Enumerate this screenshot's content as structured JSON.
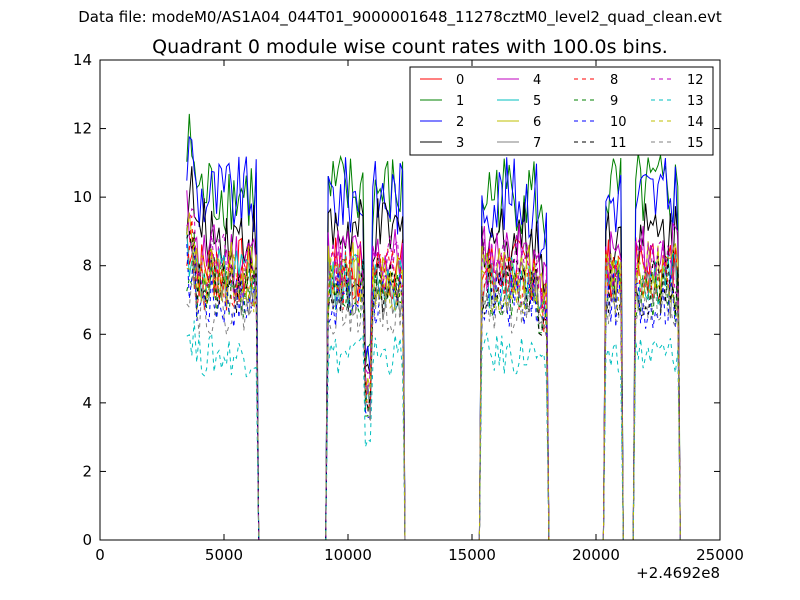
{
  "figure": {
    "suptitle": "Data file: modeM0/AS1A04_044T01_9000001648_11278cztM0_level2_quad_clean.evt",
    "offset_label": "+2.4692e8"
  },
  "chart_data": {
    "type": "line",
    "title": "Quadrant 0 module wise count rates with 100.0s bins.",
    "xlabel": "",
    "ylabel": "",
    "xlim": [
      0,
      25000
    ],
    "ylim": [
      0,
      14
    ],
    "x_offset": 246920000,
    "grid": false,
    "legend_placement": "top-right",
    "xticks": [
      0,
      5000,
      10000,
      15000,
      20000,
      25000
    ],
    "yticks": [
      0,
      2,
      4,
      6,
      8,
      10,
      12,
      14
    ],
    "segments": [
      {
        "start": 3500,
        "end": 6300
      },
      {
        "start": 9200,
        "end": 12200
      },
      {
        "start": 15400,
        "end": 18000
      },
      {
        "start": 20400,
        "end": 21000
      },
      {
        "start": 21600,
        "end": 23300
      }
    ],
    "series": [
      {
        "name": "0",
        "color": "#ff0000",
        "dashed": false,
        "level": 7.9
      },
      {
        "name": "1",
        "color": "#008000",
        "dashed": false,
        "level": 10.1
      },
      {
        "name": "2",
        "color": "#0000ff",
        "dashed": false,
        "level": 10.0
      },
      {
        "name": "3",
        "color": "#000000",
        "dashed": false,
        "level": 8.9
      },
      {
        "name": "4",
        "color": "#bf00bf",
        "dashed": false,
        "level": 8.3
      },
      {
        "name": "5",
        "color": "#00bfbf",
        "dashed": false,
        "level": 7.6
      },
      {
        "name": "6",
        "color": "#bfbf00",
        "dashed": false,
        "level": 7.8
      },
      {
        "name": "7",
        "color": "#808080",
        "dashed": false,
        "level": 7.3
      },
      {
        "name": "8",
        "color": "#ff0000",
        "dashed": true,
        "level": 7.6
      },
      {
        "name": "9",
        "color": "#008000",
        "dashed": true,
        "level": 7.2
      },
      {
        "name": "10",
        "color": "#0000ff",
        "dashed": true,
        "level": 7.0
      },
      {
        "name": "11",
        "color": "#000000",
        "dashed": true,
        "level": 7.4
      },
      {
        "name": "12",
        "color": "#bf00bf",
        "dashed": true,
        "level": 8.0
      },
      {
        "name": "13",
        "color": "#00bfbf",
        "dashed": true,
        "level": 5.4
      },
      {
        "name": "14",
        "color": "#bfbf00",
        "dashed": true,
        "level": 7.5
      },
      {
        "name": "15",
        "color": "#808080",
        "dashed": true,
        "level": 6.8
      }
    ]
  }
}
